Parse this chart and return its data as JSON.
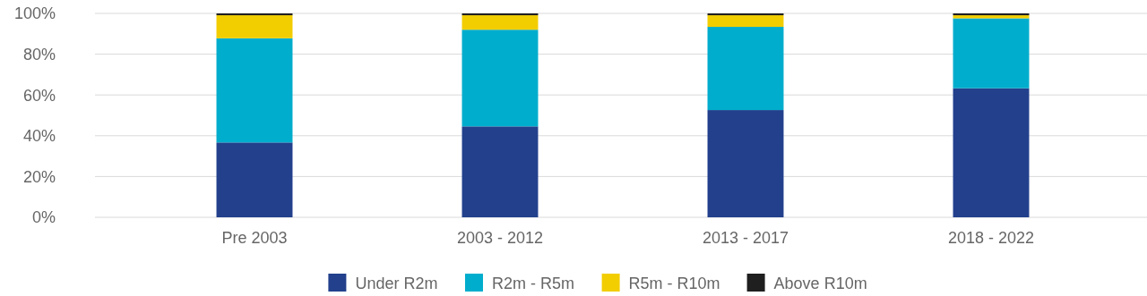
{
  "chart_data": {
    "type": "bar",
    "stacked": true,
    "categories": [
      "Pre 2003",
      "2003 - 2012",
      "2013 - 2017",
      "2018 - 2022"
    ],
    "series": [
      {
        "name": "Under R2m",
        "color": "#22408c",
        "values": [
          36.7,
          44.6,
          52.6,
          63.3
        ]
      },
      {
        "name": "R2m - R5m",
        "color": "#00adcd",
        "values": [
          51.1,
          47.4,
          40.8,
          34.3
        ]
      },
      {
        "name": "R5m - R10m",
        "color": "#f2cd00",
        "values": [
          11.3,
          7.1,
          5.7,
          1.5
        ]
      },
      {
        "name": "Above R10m",
        "color": "#1f1f1f",
        "values": [
          0.9,
          0.9,
          0.9,
          0.9
        ]
      }
    ],
    "ylim": [
      0,
      100
    ],
    "yticks": [
      {
        "value": 0,
        "label": "0%"
      },
      {
        "value": 20,
        "label": "20%"
      },
      {
        "value": 40,
        "label": "40%"
      },
      {
        "value": 60,
        "label": "60%"
      },
      {
        "value": 80,
        "label": "80%"
      },
      {
        "value": 100,
        "label": "100%"
      }
    ],
    "grid": "y",
    "legend": "bottom"
  }
}
